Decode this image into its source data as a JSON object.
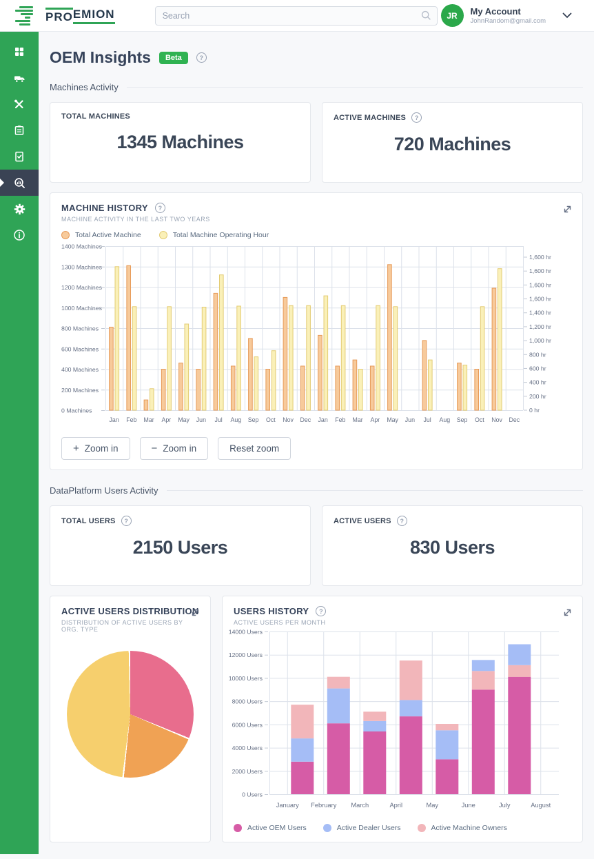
{
  "topbar": {
    "logo": {
      "pro": "PRO",
      "emion": "EMION"
    },
    "search_placeholder": "Search",
    "account": {
      "initials": "JR",
      "label": "My Account",
      "email": "JohnRandom@gmail.com"
    }
  },
  "icons": {
    "help": "?"
  },
  "sidebar": {
    "items": [
      {
        "name": "dashboard"
      },
      {
        "name": "machines"
      },
      {
        "name": "service-tools"
      },
      {
        "name": "planning"
      },
      {
        "name": "reports"
      },
      {
        "name": "insights",
        "active": true
      },
      {
        "name": "settings"
      },
      {
        "name": "info"
      }
    ]
  },
  "page": {
    "title": "OEM Insights",
    "badge": "Beta"
  },
  "sections": {
    "machines_activity": "Machines Activity",
    "users_activity": "DataPlatform Users Activity"
  },
  "stat_cards": [
    {
      "label": "TOTAL MACHINES",
      "value": "1345 Machines",
      "has_help": false
    },
    {
      "label": "ACTIVE MACHINES",
      "value": "720 Machines",
      "has_help": true
    },
    {
      "label": "TOTAL USERS",
      "value": "2150 Users",
      "has_help": true
    },
    {
      "label": "ACTIVE USERS",
      "value": "830 Users",
      "has_help": true
    }
  ],
  "machine_history": {
    "title": "MACHINE HISTORY",
    "subtitle": "MACHINE ACTIVITY IN THE LAST TWO YEARS",
    "legend": [
      {
        "label": "Total Active Machine",
        "fill": "#F7CA9B",
        "border": "#E79A58"
      },
      {
        "label": "Total Machine Operating Hour",
        "fill": "#FAF0B8",
        "border": "#E3CC74"
      }
    ],
    "buttons": [
      {
        "icon": "+",
        "label": "Zoom in"
      },
      {
        "icon": "−",
        "label": "Zoom in"
      },
      {
        "icon": "",
        "label": "Reset zoom"
      }
    ]
  },
  "users_distribution": {
    "title": "ACTIVE USERS DISTRIBUTION",
    "subtitle": "DISTRIBUTION OF ACTIVE USERS BY ORG. TYPE"
  },
  "users_history": {
    "title": "USERS HISTORY",
    "subtitle": "ACTIVE USERS PER MONTH",
    "legend": [
      {
        "label": "Active OEM Users",
        "color": "#D65CA6"
      },
      {
        "label": "Active Dealer Users",
        "color": "#A5BDF6"
      },
      {
        "label": "Active Machine Owners",
        "color": "#F2B6BA"
      }
    ]
  },
  "chart_data": [
    {
      "id": "machine-history",
      "type": "bar",
      "categories": [
        "Jan",
        "Feb",
        "Mar",
        "Apr",
        "May",
        "Jun",
        "Jul",
        "Aug",
        "Sep",
        "Oct",
        "Nov",
        "Dec",
        "Jan",
        "Feb",
        "Mar",
        "Apr",
        "May",
        "Jun",
        "Jul",
        "Aug",
        "Sep",
        "Oct",
        "Nov",
        "Dec"
      ],
      "series": [
        {
          "name": "Total Active Machine",
          "fill": "#F7CA9B",
          "border": "#E79A58",
          "values": [
            810,
            1305,
            100,
            400,
            460,
            400,
            1140,
            430,
            700,
            400,
            1100,
            430,
            730,
            430,
            490,
            430,
            1310,
            0,
            680,
            0,
            460,
            400,
            1190,
            0
          ]
        },
        {
          "name": "Total Machine Operating Hour",
          "fill": "#FAF0B8",
          "border": "#E3CC74",
          "values": [
            1300,
            1010,
            210,
            1010,
            840,
            1005,
            1260,
            1015,
            520,
            580,
            1020,
            1020,
            1115,
            1020,
            400,
            1020,
            1010,
            0,
            490,
            0,
            440,
            1010,
            1290,
            0
          ]
        }
      ],
      "y_left_labels": [
        "1400 Machines",
        "1300 Machines",
        "1200 Machines",
        "1000 Machines",
        "800 Machines",
        "600 Machines",
        "400 Machines",
        "200 Machines",
        "0 Machines"
      ],
      "y_left_scale_stops": [
        0,
        200,
        400,
        600,
        800,
        1000,
        1200,
        1300,
        1400
      ],
      "y_right_labels": [
        "1,600 hr",
        "1,600 hr",
        "1,600 hr",
        "1,600 hr",
        "1,400 hr",
        "1,200 hr",
        "1,000 hr",
        "800 hr",
        "600 hr",
        "400 hr",
        "200 hr",
        "0 hr"
      ]
    },
    {
      "id": "active-users-distribution",
      "type": "pie",
      "slices": [
        {
          "color": "#E86D8D",
          "percent": 31.5
        },
        {
          "color": "#F0A254",
          "percent": 20.5
        },
        {
          "color": "#F6CF6D",
          "percent": 48
        }
      ]
    },
    {
      "id": "users-history",
      "type": "stacked-bar",
      "categories": [
        "January",
        "February",
        "March",
        "April",
        "May",
        "June",
        "July",
        "August"
      ],
      "ymax": 14000,
      "y_labels": [
        "14000 Users",
        "12000 Users",
        "10000 Users",
        "8000 Users",
        "6000 Users",
        "4000 Users",
        "2000 Users",
        "0 Users"
      ],
      "bars": [
        {
          "month": "January",
          "segments": [
            {
              "name": "Active OEM Users",
              "value": 2800
            },
            {
              "name": "Active Dealer Users",
              "value": 2000
            },
            {
              "name": "Active Machine Owners",
              "value": 2900
            }
          ]
        },
        {
          "month": "February",
          "segments": [
            {
              "name": "Active OEM Users",
              "value": 6100
            },
            {
              "name": "Active Dealer Users",
              "value": 3000
            },
            {
              "name": "Active Machine Owners",
              "value": 1000
            }
          ]
        },
        {
          "month": "March",
          "segments": [
            {
              "name": "Active OEM Users",
              "value": 5400
            },
            {
              "name": "Active Dealer Users",
              "value": 900
            },
            {
              "name": "Active Machine Owners",
              "value": 800
            }
          ]
        },
        {
          "month": "April",
          "segments": [
            {
              "name": "Active OEM Users",
              "value": 6700
            },
            {
              "name": "Active Dealer Users",
              "value": 1400
            },
            {
              "name": "Active Machine Owners",
              "value": 3400
            }
          ]
        },
        {
          "month": "May",
          "segments": [
            {
              "name": "Active OEM Users",
              "value": 3000
            },
            {
              "name": "Active Dealer Users",
              "value": 2500
            },
            {
              "name": "Active Machine Owners",
              "value": 550
            }
          ]
        },
        {
          "month": "June",
          "segments": [
            {
              "name": "Active OEM Users",
              "value": 9000
            },
            {
              "name": "Active Machine Owners",
              "value": 1600
            },
            {
              "name": "Active Dealer Users",
              "value": 950
            }
          ]
        },
        {
          "month": "July",
          "segments": [
            {
              "name": "Active OEM Users",
              "value": 10100
            },
            {
              "name": "Active Machine Owners",
              "value": 1000
            },
            {
              "name": "Active Dealer Users",
              "value": 1800
            }
          ]
        },
        {
          "month": "August",
          "segments": []
        }
      ]
    }
  ],
  "colors": {
    "brand_green": "#2FA456",
    "badge_green": "#2FB251",
    "sidebar_active": "#3A4354",
    "grid": "#DCE1EA"
  }
}
